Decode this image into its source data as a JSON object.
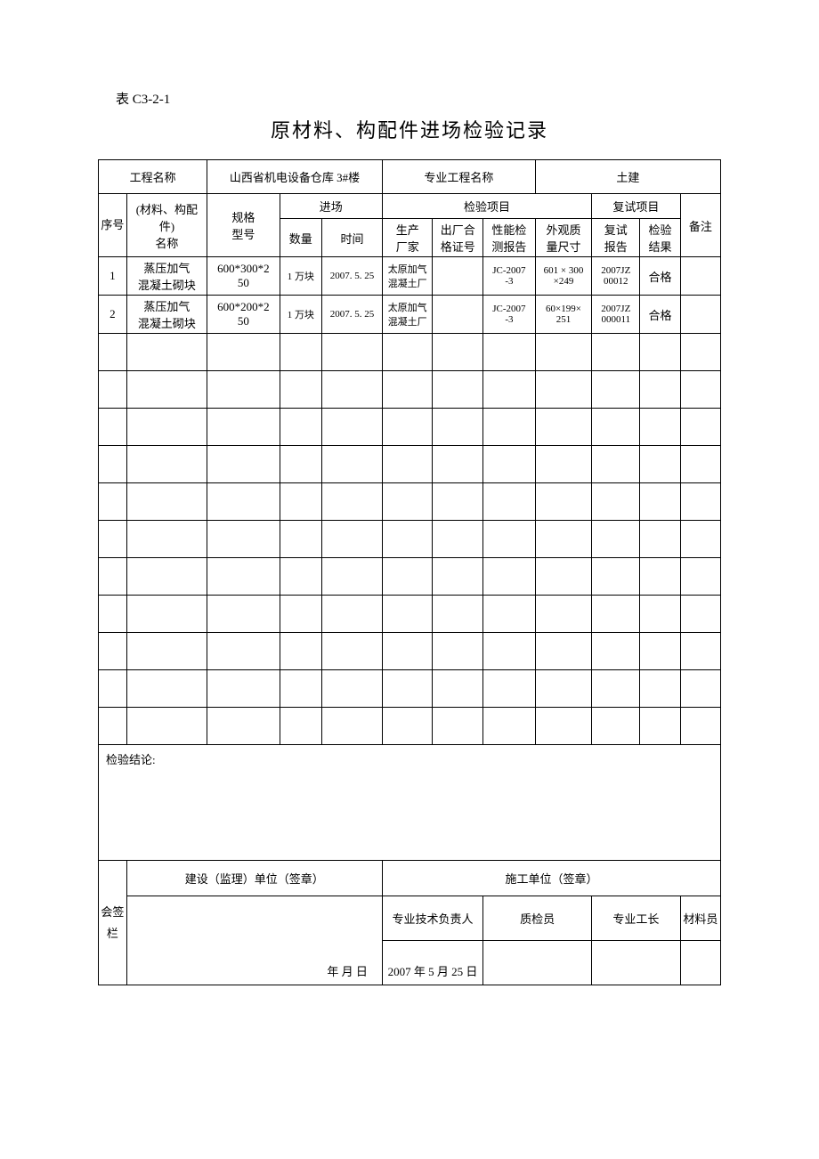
{
  "form_code": "表 C3-2-1",
  "title": "原材料、构配件进场检验记录",
  "labels": {
    "project_name": "工程名称",
    "project_value": "山西省机电设备仓库 3#楼",
    "specialty_label": "专业工程名称",
    "specialty_value": "土建",
    "seq": "序号",
    "material_name": "(材料、构配件)\n名称",
    "spec": "规格\n型号",
    "entry": "进场",
    "qty": "数量",
    "time": "时间",
    "inspect_items": "检验项目",
    "manufacturer": "生产\n厂家",
    "cert": "出厂合\n格证号",
    "perf_report": "性能检\n测报告",
    "appearance": "外观质\n量尺寸",
    "retest_items": "复试项目",
    "retest_report": "复试\n报告",
    "retest_result": "检验\n结果",
    "remark": "备注",
    "conclusion": "检验结论:",
    "sign_col": "会签栏",
    "build_unit": "建设（监理）单位（签章）",
    "construct_unit": "施工单位（签章）",
    "tech_lead": "专业技术负责人",
    "qc": "质检员",
    "foreman": "专业工长",
    "material_clerk": "材料员",
    "date_blank": "年    月    日",
    "date_filled": "2007 年 5 月 25 日"
  },
  "rows": [
    {
      "seq": "1",
      "name": "蒸压加气\n混凝土砌块",
      "spec": "600*300*2\n50",
      "qty": "1 万块",
      "time": "2007. 5. 25",
      "mfr": "太原加气\n混凝土厂",
      "cert": "",
      "perf": "JC-2007\n-3",
      "appearance": "601 × 300\n×249",
      "retest_report": "2007JZ\n00012",
      "result": "合格",
      "remark": ""
    },
    {
      "seq": "2",
      "name": "蒸压加气\n混凝土砌块",
      "spec": "600*200*2\n50",
      "qty": "1 万块",
      "time": "2007. 5. 25",
      "mfr": "太原加气\n混凝土厂",
      "cert": "",
      "perf": "JC-2007\n-3",
      "appearance": "60×199×\n251",
      "retest_report": "2007JZ\n000011",
      "result": "合格",
      "remark": ""
    }
  ],
  "empty_row_count": 11
}
